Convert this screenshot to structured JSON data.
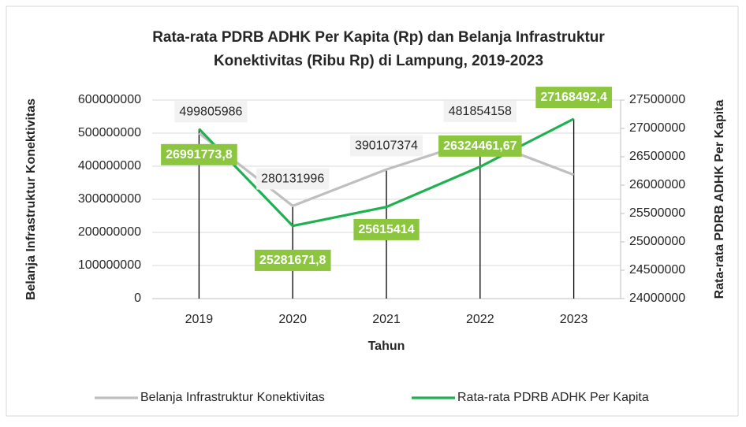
{
  "chart_data": {
    "type": "line",
    "title": "Rata-rata PDRB ADHK Per Kapita (Rp) dan Belanja Infrastruktur",
    "title_line2": "Konektivitas (Ribu Rp) di Lampung, 2019-2023",
    "x_label": "Tahun",
    "y_label": "Belanja Infrastruktur Konektivitas",
    "y2_label": "Rata-rata PDRB ADHK Per Kapita",
    "categories": [
      "2019",
      "2020",
      "2021",
      "2022",
      "2023"
    ],
    "ylim": [
      0,
      600000000
    ],
    "yticks": [
      0,
      100000000,
      200000000,
      300000000,
      400000000,
      500000000,
      600000000
    ],
    "y2lim": [
      24000000,
      27500000
    ],
    "y2ticks": [
      24000000,
      24500000,
      25000000,
      25500000,
      26000000,
      26500000,
      27000000,
      27500000
    ],
    "grid": true,
    "legend": "bottom",
    "series": [
      {
        "name": "Belanja Infrastruktur Konektivitas",
        "color": "#bfbfbf",
        "values": [
          499805986,
          280131996,
          390107374,
          481854158,
          374000000
        ],
        "value_labels": [
          "499805986",
          "280131996",
          "390107374",
          "481854158",
          null
        ]
      },
      {
        "name": "Rata-rata PDRB ADHK Per Kapita",
        "color": "#1fb050",
        "axis": "y2",
        "values": [
          26991773.8,
          25281671.8,
          25615414,
          26324461.67,
          27168492.4
        ],
        "value_labels": [
          "26991773,8",
          "25281671,8",
          "25615414",
          "26324461,67",
          "27168492,4"
        ]
      }
    ]
  }
}
